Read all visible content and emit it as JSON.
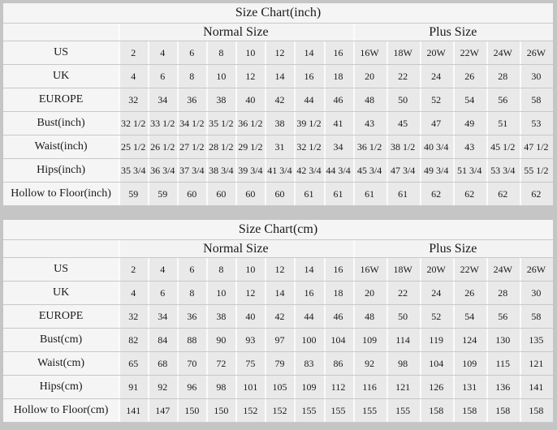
{
  "page": {
    "background_color": "#c5c5c5",
    "table_background": "#f5f5f5",
    "data_cell_background": "#e9e9e9",
    "horizontal_rule_color": "#c8c8c8",
    "vertical_separator_color": "#fbfbfb",
    "text_color": "#1a1a1a"
  },
  "chart_data": [
    {
      "type": "table",
      "title": "Size Chart(inch)",
      "column_groups": [
        {
          "label": "Normal Size",
          "span": 8
        },
        {
          "label": "Plus Size",
          "span": 6
        }
      ],
      "rows": [
        {
          "label": "US",
          "values": [
            "2",
            "4",
            "6",
            "8",
            "10",
            "12",
            "14",
            "16",
            "16W",
            "18W",
            "20W",
            "22W",
            "24W",
            "26W"
          ]
        },
        {
          "label": "UK",
          "values": [
            "4",
            "6",
            "8",
            "10",
            "12",
            "14",
            "16",
            "18",
            "20",
            "22",
            "24",
            "26",
            "28",
            "30"
          ]
        },
        {
          "label": "EUROPE",
          "values": [
            "32",
            "34",
            "36",
            "38",
            "40",
            "42",
            "44",
            "46",
            "48",
            "50",
            "52",
            "54",
            "56",
            "58"
          ]
        },
        {
          "label": "Bust(inch)",
          "values": [
            "32 1/2",
            "33 1/2",
            "34 1/2",
            "35 1/2",
            "36 1/2",
            "38",
            "39 1/2",
            "41",
            "43",
            "45",
            "47",
            "49",
            "51",
            "53"
          ]
        },
        {
          "label": "Waist(inch)",
          "values": [
            "25 1/2",
            "26 1/2",
            "27 1/2",
            "28 1/2",
            "29 1/2",
            "31",
            "32 1/2",
            "34",
            "36 1/2",
            "38 1/2",
            "40 3/4",
            "43",
            "45 1/2",
            "47 1/2"
          ]
        },
        {
          "label": "Hips(inch)",
          "values": [
            "35 3/4",
            "36 3/4",
            "37 3/4",
            "38 3/4",
            "39 3/4",
            "41 3/4",
            "42 3/4",
            "44 3/4",
            "45 3/4",
            "47 3/4",
            "49 3/4",
            "51 3/4",
            "53 3/4",
            "55 1/2"
          ]
        },
        {
          "label": "Hollow to Floor(inch)",
          "values": [
            "59",
            "59",
            "60",
            "60",
            "60",
            "60",
            "61",
            "61",
            "61",
            "61",
            "62",
            "62",
            "62",
            "62"
          ]
        }
      ]
    },
    {
      "type": "table",
      "title": "Size Chart(cm)",
      "column_groups": [
        {
          "label": "Normal Size",
          "span": 8
        },
        {
          "label": "Plus Size",
          "span": 6
        }
      ],
      "rows": [
        {
          "label": "US",
          "values": [
            "2",
            "4",
            "6",
            "8",
            "10",
            "12",
            "14",
            "16",
            "16W",
            "18W",
            "20W",
            "22W",
            "24W",
            "26W"
          ]
        },
        {
          "label": "UK",
          "values": [
            "4",
            "6",
            "8",
            "10",
            "12",
            "14",
            "16",
            "18",
            "20",
            "22",
            "24",
            "26",
            "28",
            "30"
          ]
        },
        {
          "label": "EUROPE",
          "values": [
            "32",
            "34",
            "36",
            "38",
            "40",
            "42",
            "44",
            "46",
            "48",
            "50",
            "52",
            "54",
            "56",
            "58"
          ]
        },
        {
          "label": "Bust(cm)",
          "values": [
            "82",
            "84",
            "88",
            "90",
            "93",
            "97",
            "100",
            "104",
            "109",
            "114",
            "119",
            "124",
            "130",
            "135"
          ]
        },
        {
          "label": "Waist(cm)",
          "values": [
            "65",
            "68",
            "70",
            "72",
            "75",
            "79",
            "83",
            "86",
            "92",
            "98",
            "104",
            "109",
            "115",
            "121"
          ]
        },
        {
          "label": "Hips(cm)",
          "values": [
            "91",
            "92",
            "96",
            "98",
            "101",
            "105",
            "109",
            "112",
            "116",
            "121",
            "126",
            "131",
            "136",
            "141"
          ]
        },
        {
          "label": "Hollow to Floor(cm)",
          "values": [
            "141",
            "147",
            "150",
            "150",
            "152",
            "152",
            "155",
            "155",
            "155",
            "155",
            "158",
            "158",
            "158",
            "158"
          ]
        }
      ]
    }
  ]
}
